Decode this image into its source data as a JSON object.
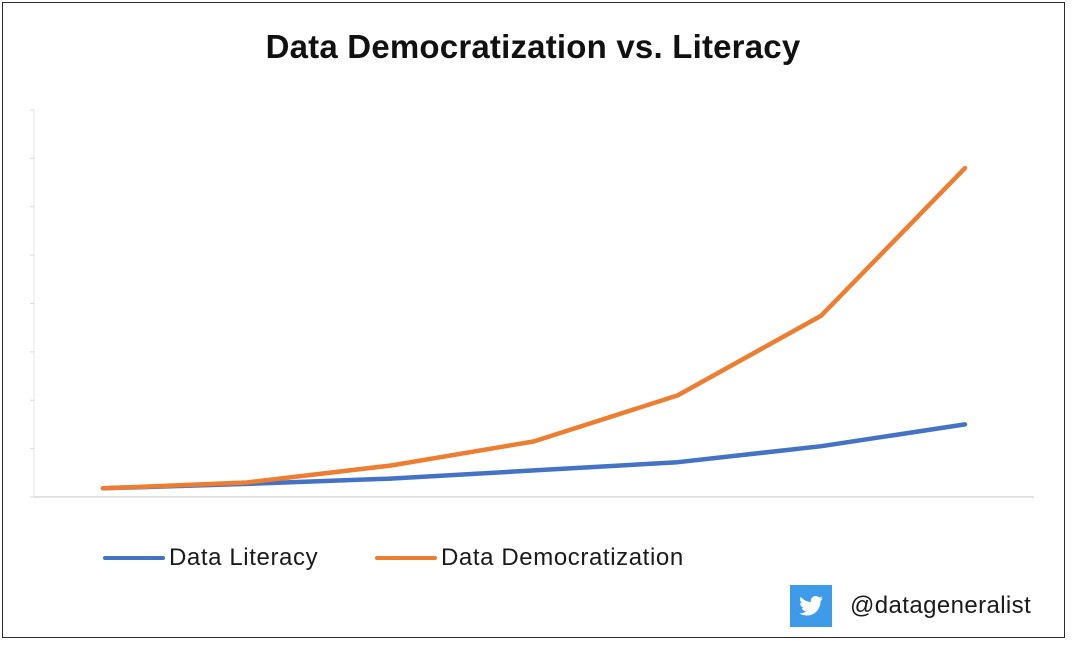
{
  "chart_data": {
    "type": "line",
    "title": "Data Democratization vs. Literacy",
    "xlabel": "",
    "ylabel": "",
    "x": [
      1,
      2,
      3,
      4,
      5,
      6,
      7
    ],
    "ylim": [
      0,
      8
    ],
    "y_tick_count": 8,
    "grid": false,
    "legend_position": "bottom",
    "series": [
      {
        "name": "Data Literacy",
        "color": "#4472C4",
        "values": [
          0.18,
          0.27,
          0.38,
          0.55,
          0.72,
          1.05,
          1.5
        ]
      },
      {
        "name": "Data Democratization",
        "color": "#ED7D31",
        "values": [
          0.18,
          0.3,
          0.65,
          1.15,
          2.1,
          3.75,
          6.8
        ]
      }
    ]
  },
  "attribution": {
    "icon": "twitter-icon",
    "icon_color": "#3D9BE9",
    "handle": "@datageneralist"
  }
}
